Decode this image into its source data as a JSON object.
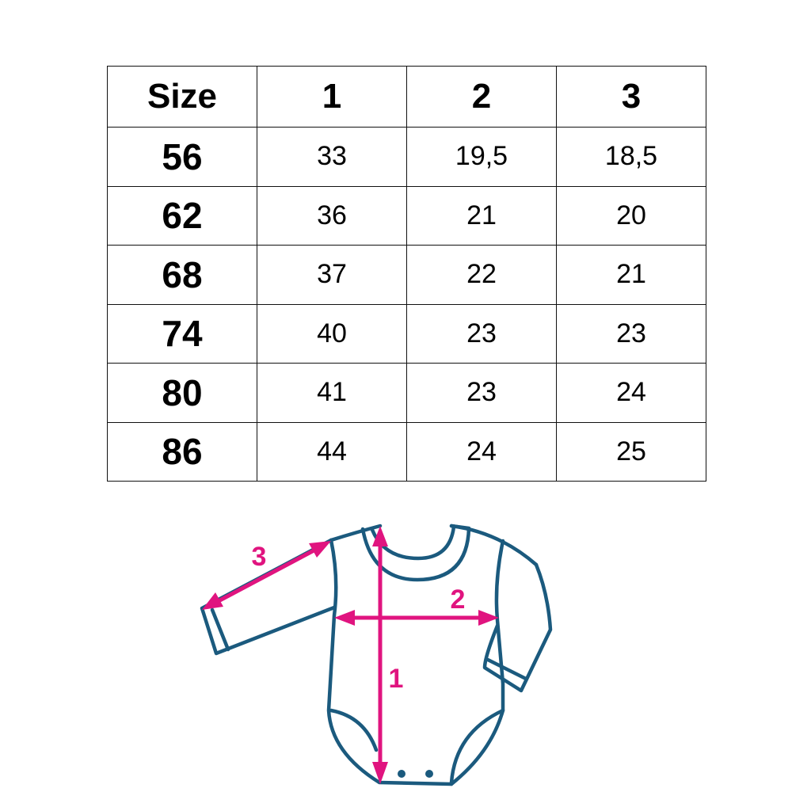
{
  "table": {
    "headers": [
      "Size",
      "1",
      "2",
      "3"
    ],
    "rows": [
      [
        "56",
        "33",
        "19,5",
        "18,5"
      ],
      [
        "62",
        "36",
        "21",
        "20"
      ],
      [
        "68",
        "37",
        "22",
        "21"
      ],
      [
        "74",
        "40",
        "23",
        "23"
      ],
      [
        "80",
        "41",
        "23",
        "24"
      ],
      [
        "86",
        "44",
        "24",
        "25"
      ]
    ]
  },
  "diagram": {
    "labels": {
      "length": "1",
      "chest": "2",
      "sleeve": "3"
    },
    "colors": {
      "outline": "#1b5a7e",
      "measure": "#e0147f"
    }
  }
}
